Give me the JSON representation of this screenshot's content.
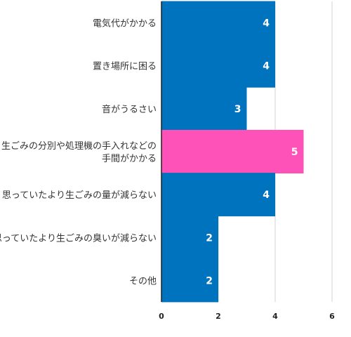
{
  "chart_data": {
    "type": "bar",
    "orientation": "horizontal",
    "categories": [
      [
        "電気代がかかる"
      ],
      [
        "置き場所に困る"
      ],
      [
        "音がうるさい"
      ],
      [
        "生ごみの分別や処理機の手入れなどの",
        "手間がかかる"
      ],
      [
        "思っていたより生ごみの量が減らない"
      ],
      [
        "思っていたより生ごみの臭いが減らない"
      ],
      [
        "その他"
      ]
    ],
    "values": [
      4,
      4,
      3,
      5,
      4,
      2,
      2
    ],
    "data_labels": [
      "4",
      "4",
      "3",
      "5",
      "4",
      "2",
      "2"
    ],
    "xlim": [
      0,
      6
    ],
    "x_ticks": [
      "0",
      "2",
      "4",
      "6"
    ],
    "grid": true,
    "colors": {
      "bar": "#0073BE",
      "highlight": "#FF52B8",
      "axis": "#222222",
      "grid": "#d3d3d3"
    },
    "highlight_index": 3
  }
}
